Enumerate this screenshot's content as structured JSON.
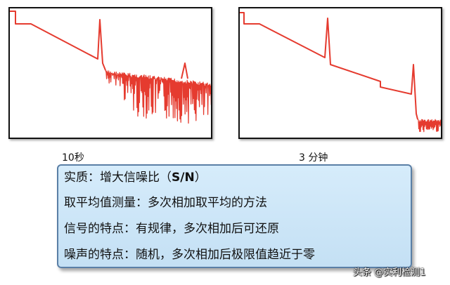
{
  "diagram": {
    "left_panel": {
      "caption": "10秒"
    },
    "right_panel": {
      "caption": "3 分钟"
    },
    "callout": {
      "line0_prefix": "实质：增大信噪比（",
      "line0_bold": "S/N",
      "line0_suffix": "）",
      "line1": "取平均值测量：多次相加取平均的方法",
      "line2": "信号的特点：有规律，多次相加后可还原",
      "line3": "噪声的特点：随机，多次相加后极限值趋近于零"
    },
    "trace_color": "#e53b2f",
    "watermark": "头条 @实利检测1"
  }
}
